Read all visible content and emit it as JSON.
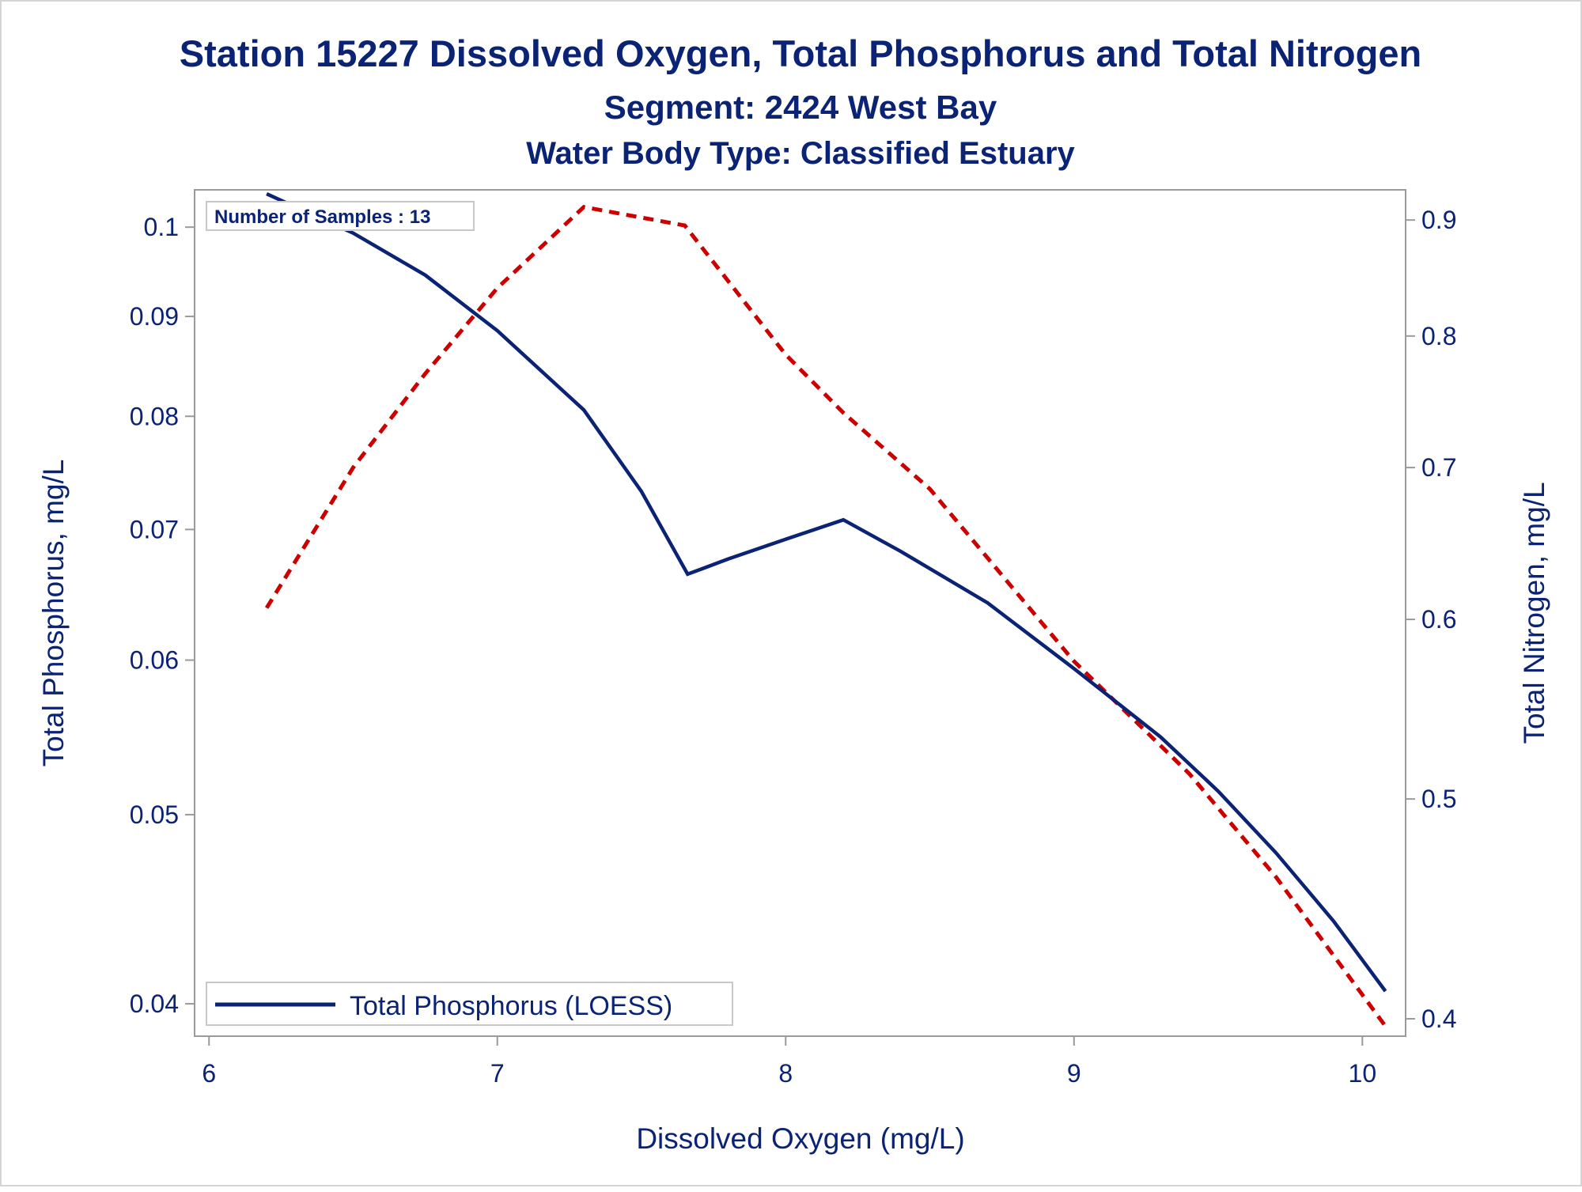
{
  "colors": {
    "text": "#0b2375",
    "phosphorus_line": "#0b2375",
    "nitrogen_line": "#cc0000",
    "axis": "#9a9a9a"
  },
  "chart_data": {
    "type": "line",
    "title": "Station 15227  Dissolved Oxygen, Total Phosphorus and Total Nitrogen",
    "subtitle": "Segment: 2424  West Bay",
    "subtitle2": "Water Body Type: Classified Estuary",
    "xlabel": "Dissolved Oxygen (mg/L)",
    "ylabel_left": "Total Phosphorus, mg/L",
    "ylabel_right": "Total Nitrogen, mg/L",
    "annotation": "Number of Samples : 13",
    "legend_position": "bottom-left",
    "grid": false,
    "x_scale": "linear",
    "y_left_scale": "log",
    "y_right_scale": "log",
    "xlim": [
      5.95,
      10.15
    ],
    "ylim_left": [
      0.0385,
      0.1045
    ],
    "ylim_right": [
      0.393,
      0.928
    ],
    "x_ticks": [
      "6",
      "7",
      "8",
      "9",
      "10"
    ],
    "y_left_ticks": [
      "0.04",
      "0.05",
      "0.06",
      "0.07",
      "0.08",
      "0.09",
      "0.1"
    ],
    "y_right_ticks": [
      "0.4",
      "0.5",
      "0.6",
      "0.7",
      "0.8",
      "0.9"
    ],
    "series": [
      {
        "name": "Total Phosphorus (LOESS)",
        "axis": "left",
        "style": "solid",
        "x": [
          6.2,
          6.5,
          6.75,
          7.0,
          7.3,
          7.5,
          7.66,
          7.8,
          8.0,
          8.2,
          8.4,
          8.7,
          9.0,
          9.3,
          9.5,
          9.7,
          9.9,
          10.08
        ],
        "y": [
          0.104,
          0.0993,
          0.0945,
          0.0885,
          0.0806,
          0.0732,
          0.0664,
          0.0676,
          0.0692,
          0.0708,
          0.0682,
          0.0642,
          0.0594,
          0.0548,
          0.0514,
          0.0478,
          0.0441,
          0.0406
        ]
      },
      {
        "name": "Total Nitrogen",
        "axis": "right",
        "style": "dashed",
        "x": [
          6.2,
          6.5,
          6.75,
          7.0,
          7.3,
          7.65,
          8.0,
          8.2,
          8.5,
          9.0,
          9.4,
          9.7,
          10.08
        ],
        "y": [
          0.607,
          0.7,
          0.77,
          0.84,
          0.912,
          0.895,
          0.785,
          0.74,
          0.685,
          0.575,
          0.513,
          0.462,
          0.397
        ]
      }
    ]
  }
}
